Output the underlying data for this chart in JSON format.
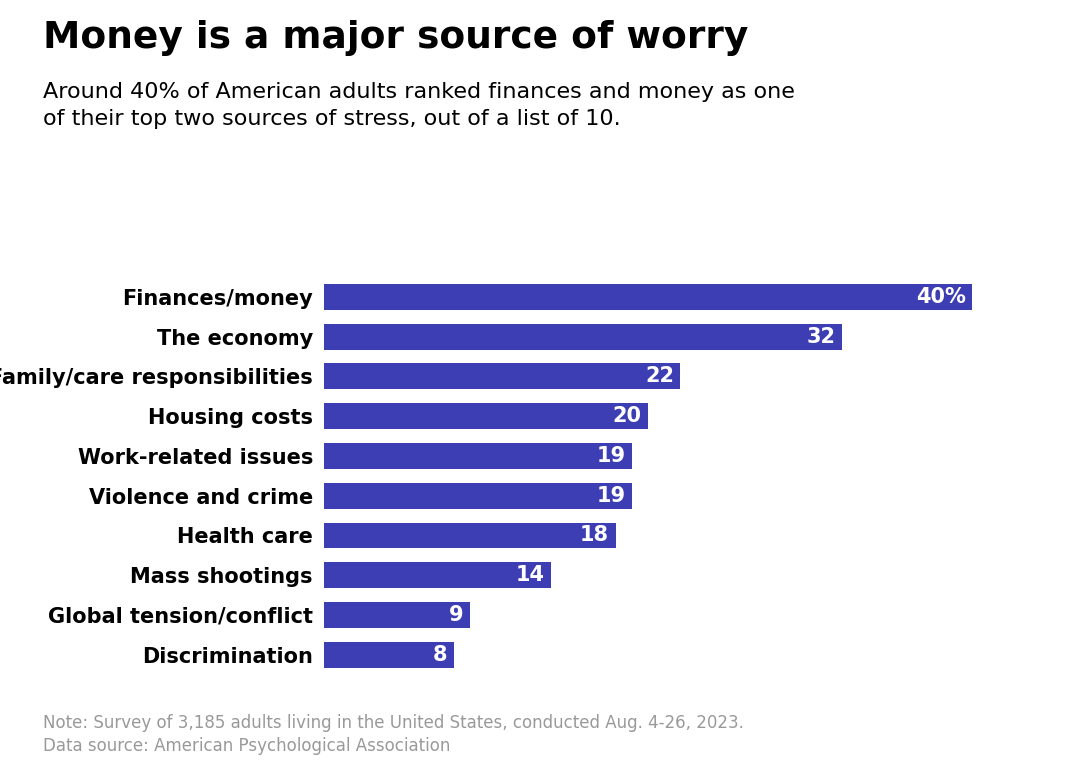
{
  "title": "Money is a major source of worry",
  "subtitle": "Around 40% of American adults ranked finances and money as one\nof their top two sources of stress, out of a list of 10.",
  "categories": [
    "Finances/money",
    "The economy",
    "Family/care responsibilities",
    "Housing costs",
    "Work-related issues",
    "Violence and crime",
    "Health care",
    "Mass shootings",
    "Global tension/conflict",
    "Discrimination"
  ],
  "values": [
    40,
    32,
    22,
    20,
    19,
    19,
    18,
    14,
    9,
    8
  ],
  "bar_color": "#3d3db4",
  "value_labels": [
    "40%",
    "32",
    "22",
    "20",
    "19",
    "19",
    "18",
    "14",
    "9",
    "8"
  ],
  "note_line1": "Note: Survey of 3,185 adults living in the United States, conducted Aug. 4-26, 2023.",
  "note_line2": "Data source: American Psychological Association",
  "note_color": "#999999",
  "background_color": "#ffffff",
  "bar_label_fontsize": 15,
  "category_fontsize": 15,
  "title_fontsize": 27,
  "subtitle_fontsize": 16,
  "note_fontsize": 12,
  "xlim_max": 44,
  "bar_height": 0.65
}
